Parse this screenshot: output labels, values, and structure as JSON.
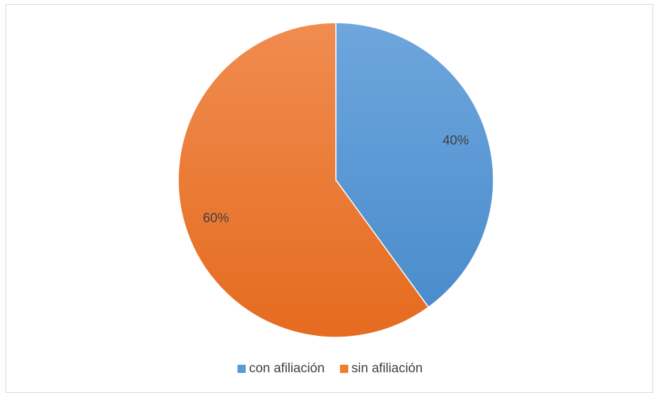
{
  "chart_data": {
    "type": "pie",
    "categories": [
      "con afiliación",
      "sin afiliación"
    ],
    "values": [
      40,
      60
    ],
    "labels": [
      "40%",
      "60%"
    ],
    "colors": [
      "#5b9bd5",
      "#ed7d31"
    ],
    "legend_position": "bottom",
    "title": ""
  },
  "legend": [
    {
      "label": "con afiliación",
      "color": "#5b9bd5"
    },
    {
      "label": "sin afiliación",
      "color": "#ed7d31"
    }
  ]
}
